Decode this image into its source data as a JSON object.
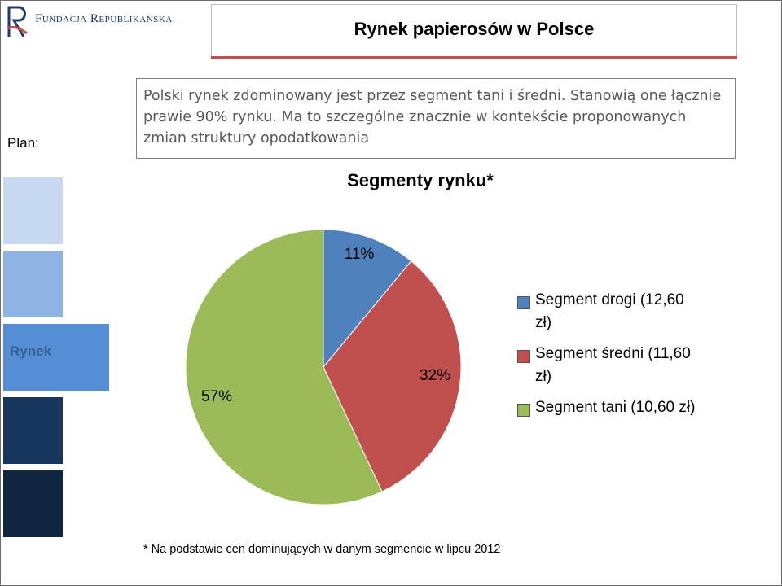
{
  "header": {
    "logo_text": "Fundacja Republikańska",
    "title": "Rynek papierosów w Polsce"
  },
  "sidebar": {
    "plan_label": "Plan:",
    "active_tab_label": "Rynek"
  },
  "intro": {
    "text": "Polski rynek zdominowany jest przez segment tani i średni. Stanowią one łącznie prawie 90% rynku. Ma to szczególne znacznie w kontekście proponowanych zmian struktury opodatkowania"
  },
  "chart_data": {
    "type": "pie",
    "title": "Segmenty rynku*",
    "categories": [
      "Segment drogi (12,60 zł)",
      "Segment średni (11,60 zł)",
      "Segment tani (10,60 zł)"
    ],
    "values": [
      11,
      32,
      57
    ],
    "value_labels": [
      "11%",
      "32%",
      "57%"
    ],
    "colors": [
      "#4f81bd",
      "#c0504d",
      "#9bbb59"
    ],
    "legend_position": "right"
  },
  "footnote": {
    "text": "* Na podstawie cen dominujących w danym segmencie w lipcu 2012"
  },
  "colors": {
    "accent_rule": "#c0504d",
    "logo_blue": "#1f3a70",
    "logo_red": "#c0504d"
  }
}
